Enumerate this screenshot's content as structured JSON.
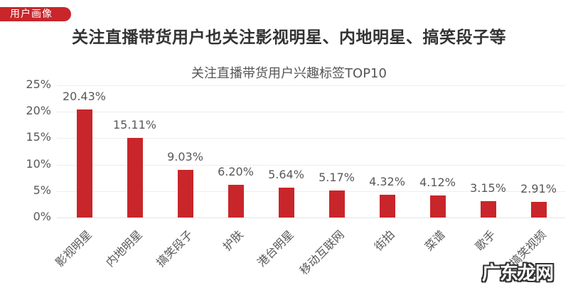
{
  "header": {
    "badge_label": "用户画像",
    "headline": "关注直播带货用户也关注影视明星、内地明星、搞笑段子等"
  },
  "colors": {
    "accent": "#c8262b",
    "bar": "#c8262b",
    "grid": "#eeeeee",
    "text": "#595959"
  },
  "watermark": "广东龙网",
  "chart_data": {
    "type": "bar",
    "title": "关注直播带货用户兴趣标签TOP10",
    "xlabel": "",
    "ylabel": "",
    "ylim": [
      0,
      25
    ],
    "yticks": [
      "0%",
      "5%",
      "10%",
      "15%",
      "20%",
      "25%"
    ],
    "grid": true,
    "legend": null,
    "categories": [
      "影视明星",
      "内地明星",
      "搞笑段子",
      "护肤",
      "港台明星",
      "移动互联网",
      "街拍",
      "菜谱",
      "歌手",
      "搞笑视频"
    ],
    "values": [
      20.43,
      15.11,
      9.03,
      6.2,
      5.64,
      5.17,
      4.32,
      4.12,
      3.15,
      2.91
    ],
    "value_labels": [
      "20.43%",
      "15.11%",
      "9.03%",
      "6.20%",
      "5.64%",
      "5.17%",
      "4.32%",
      "4.12%",
      "3.15%",
      "2.91%"
    ]
  }
}
